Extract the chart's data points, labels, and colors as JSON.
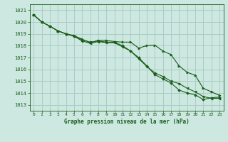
{
  "title": "Graphe pression niveau de la mer (hPa)",
  "background_color": "#cce8e0",
  "grid_color": "#aaccc4",
  "line_color": "#1a5c1a",
  "xlim": [
    -0.5,
    23.5
  ],
  "ylim": [
    1012.5,
    1021.5
  ],
  "yticks": [
    1013,
    1014,
    1015,
    1016,
    1017,
    1018,
    1019,
    1020,
    1021
  ],
  "xticks": [
    0,
    1,
    2,
    3,
    4,
    5,
    6,
    7,
    8,
    9,
    10,
    11,
    12,
    13,
    14,
    15,
    16,
    17,
    18,
    19,
    20,
    21,
    22,
    23
  ],
  "series1": [
    1020.6,
    1020.0,
    1019.65,
    1019.25,
    1019.0,
    1018.85,
    1018.55,
    1018.25,
    1018.45,
    1018.45,
    1018.35,
    1018.3,
    1018.3,
    1017.8,
    1018.0,
    1018.05,
    1017.55,
    1017.25,
    1016.3,
    1015.75,
    1015.5,
    1014.4,
    1014.1,
    1013.8
  ],
  "series2": [
    1020.6,
    1020.0,
    1019.65,
    1019.25,
    1019.0,
    1018.8,
    1018.4,
    1018.2,
    1018.35,
    1018.25,
    1018.25,
    1017.9,
    1017.55,
    1016.9,
    1016.25,
    1015.7,
    1015.4,
    1015.0,
    1014.8,
    1014.4,
    1014.1,
    1013.7,
    1013.55,
    1013.55
  ],
  "series3": [
    1020.6,
    1020.0,
    1019.65,
    1019.25,
    1019.0,
    1018.8,
    1018.5,
    1018.3,
    1018.4,
    1018.3,
    1018.3,
    1018.0,
    1017.55,
    1017.0,
    1016.3,
    1015.55,
    1015.2,
    1014.85,
    1014.25,
    1014.0,
    1013.85,
    1013.45,
    1013.6,
    1013.65
  ]
}
